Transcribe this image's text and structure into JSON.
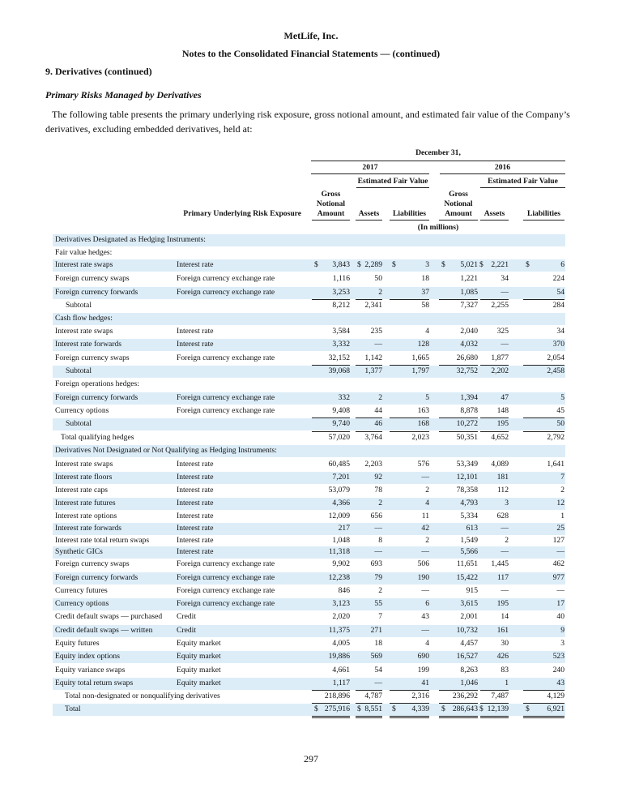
{
  "header": {
    "company": "MetLife, Inc.",
    "title": "Notes to the Consolidated Financial Statements — (continued)"
  },
  "section": "9. Derivatives (continued)",
  "subsection": "Primary Risks Managed by Derivatives",
  "intro": "The following table presents the primary underlying risk exposure, gross notional amount, and estimated fair value of the Company’s derivatives, excluding embedded derivatives, held at:",
  "table": {
    "date": "December 31,",
    "years": [
      "2017",
      "2016"
    ],
    "fair_value": [
      "Estimated Fair Value",
      "Estimated Fair Value"
    ],
    "columns": [
      "Gross Notional Amount",
      "Assets",
      "Liabilities",
      "Gross Notional Amount",
      "Assets",
      "Liabilities"
    ],
    "risk_header": "Primary Underlying Risk Exposure",
    "units": "(In millions)",
    "rows": [
      {
        "label": "Derivatives Designated as Hedging Instruments:"
      },
      {
        "label": "Fair value hedges:"
      },
      {
        "label": "Interest rate swaps",
        "risk": "Interest rate",
        "cells": [
          [
            "$",
            "3,843"
          ],
          [
            "$",
            "2,289"
          ],
          [
            "$",
            "3"
          ],
          [
            "$",
            "5,021"
          ],
          [
            "$",
            "2,221"
          ],
          [
            "$",
            "6"
          ]
        ]
      },
      {
        "label": "Foreign currency swaps",
        "risk": "Foreign currency exchange rate",
        "cells": [
          "1,116",
          "50",
          "18",
          "1,221",
          "34",
          "224"
        ]
      },
      {
        "label": "Foreign currency forwards",
        "risk": "Foreign currency exchange rate",
        "cells": [
          "3,253",
          "2",
          "37",
          "1,085",
          "—",
          "54"
        ]
      },
      {
        "label": "Subtotal",
        "cells": [
          "8,212",
          "2,341",
          "58",
          "7,327",
          "2,255",
          "284"
        ]
      },
      {
        "label": "Cash flow hedges:"
      },
      {
        "label": "Interest rate swaps",
        "risk": "Interest rate",
        "cells": [
          "3,584",
          "235",
          "4",
          "2,040",
          "325",
          "34"
        ]
      },
      {
        "label": "Interest rate forwards",
        "risk": "Interest rate",
        "cells": [
          "3,332",
          "—",
          "128",
          "4,032",
          "—",
          "370"
        ]
      },
      {
        "label": "Foreign currency swaps",
        "risk": "Foreign currency exchange rate",
        "cells": [
          "32,152",
          "1,142",
          "1,665",
          "26,680",
          "1,877",
          "2,054"
        ]
      },
      {
        "label": "Subtotal",
        "cells": [
          "39,068",
          "1,377",
          "1,797",
          "32,752",
          "2,202",
          "2,458"
        ]
      },
      {
        "label": "Foreign operations hedges:"
      },
      {
        "label": "Foreign currency forwards",
        "risk": "Foreign currency exchange rate",
        "cells": [
          "332",
          "2",
          "5",
          "1,394",
          "47",
          "5"
        ]
      },
      {
        "label": "Currency options",
        "risk": "Foreign currency exchange rate",
        "cells": [
          "9,408",
          "44",
          "163",
          "8,878",
          "148",
          "45"
        ]
      },
      {
        "label": "Subtotal",
        "cells": [
          "9,740",
          "46",
          "168",
          "10,272",
          "195",
          "50"
        ]
      },
      {
        "label": "Total qualifying hedges",
        "cells": [
          "57,020",
          "3,764",
          "2,023",
          "50,351",
          "4,652",
          "2,792"
        ]
      },
      {
        "label": "Derivatives Not Designated or Not Qualifying as Hedging Instruments:"
      },
      {
        "label": "Interest rate swaps",
        "risk": "Interest rate",
        "cells": [
          "60,485",
          "2,203",
          "576",
          "53,349",
          "4,089",
          "1,641"
        ]
      },
      {
        "label": "Interest rate floors",
        "risk": "Interest rate",
        "cells": [
          "7,201",
          "92",
          "—",
          "12,101",
          "181",
          "7"
        ]
      },
      {
        "label": "Interest rate caps",
        "risk": "Interest rate",
        "cells": [
          "53,079",
          "78",
          "2",
          "78,358",
          "112",
          "2"
        ]
      },
      {
        "label": "Interest rate futures",
        "risk": "Interest rate",
        "cells": [
          "4,366",
          "2",
          "4",
          "4,793",
          "3",
          "12"
        ]
      },
      {
        "label": "Interest rate options",
        "risk": "Interest rate",
        "cells": [
          "12,009",
          "656",
          "11",
          "5,334",
          "628",
          "1"
        ]
      },
      {
        "label": "Interest rate forwards",
        "risk": "Interest rate",
        "cells": [
          "217",
          "—",
          "42",
          "613",
          "—",
          "25"
        ]
      },
      {
        "label": "Interest rate total return swaps",
        "risk": "Interest rate",
        "cells": [
          "1,048",
          "8",
          "2",
          "1,549",
          "2",
          "127"
        ]
      },
      {
        "label": "Synthetic GICs",
        "risk": "Interest rate",
        "cells": [
          "11,318",
          "—",
          "—",
          "5,566",
          "—",
          "—"
        ]
      },
      {
        "label": "Foreign currency swaps",
        "risk": "Foreign currency exchange rate",
        "cells": [
          "9,902",
          "693",
          "506",
          "11,651",
          "1,445",
          "462"
        ]
      },
      {
        "label": "Foreign currency forwards",
        "risk": "Foreign currency exchange rate",
        "cells": [
          "12,238",
          "79",
          "190",
          "15,422",
          "117",
          "977"
        ]
      },
      {
        "label": "Currency futures",
        "risk": "Foreign currency exchange rate",
        "cells": [
          "846",
          "2",
          "—",
          "915",
          "—",
          "—"
        ]
      },
      {
        "label": "Currency options",
        "risk": "Foreign currency exchange rate",
        "cells": [
          "3,123",
          "55",
          "6",
          "3,615",
          "195",
          "17"
        ]
      },
      {
        "label": "Credit default swaps — purchased",
        "risk": "Credit",
        "cells": [
          "2,020",
          "7",
          "43",
          "2,001",
          "14",
          "40"
        ]
      },
      {
        "label": "Credit default swaps — written",
        "risk": "Credit",
        "cells": [
          "11,375",
          "271",
          "—",
          "10,732",
          "161",
          "9"
        ]
      },
      {
        "label": "Equity futures",
        "risk": "Equity market",
        "cells": [
          "4,005",
          "18",
          "4",
          "4,457",
          "30",
          "3"
        ]
      },
      {
        "label": "Equity index options",
        "risk": "Equity market",
        "cells": [
          "19,886",
          "569",
          "690",
          "16,527",
          "426",
          "523"
        ]
      },
      {
        "label": "Equity variance swaps",
        "risk": "Equity market",
        "cells": [
          "4,661",
          "54",
          "199",
          "8,263",
          "83",
          "240"
        ]
      },
      {
        "label": "Equity total return swaps",
        "risk": "Equity market",
        "cells": [
          "1,117",
          "—",
          "41",
          "1,046",
          "1",
          "43"
        ]
      },
      {
        "label": "Total non-designated or nonqualifying derivatives",
        "cells": [
          "218,896",
          "4,787",
          "2,316",
          "236,292",
          "7,487",
          "4,129"
        ]
      },
      {
        "label": "Total",
        "cells": [
          [
            "$",
            "275,916"
          ],
          [
            "$",
            "8,551"
          ],
          [
            "$",
            "4,339"
          ],
          [
            "$",
            "286,643"
          ],
          [
            "$",
            "12,139"
          ],
          [
            "$",
            "6,921"
          ]
        ]
      }
    ]
  },
  "page_number": "297"
}
